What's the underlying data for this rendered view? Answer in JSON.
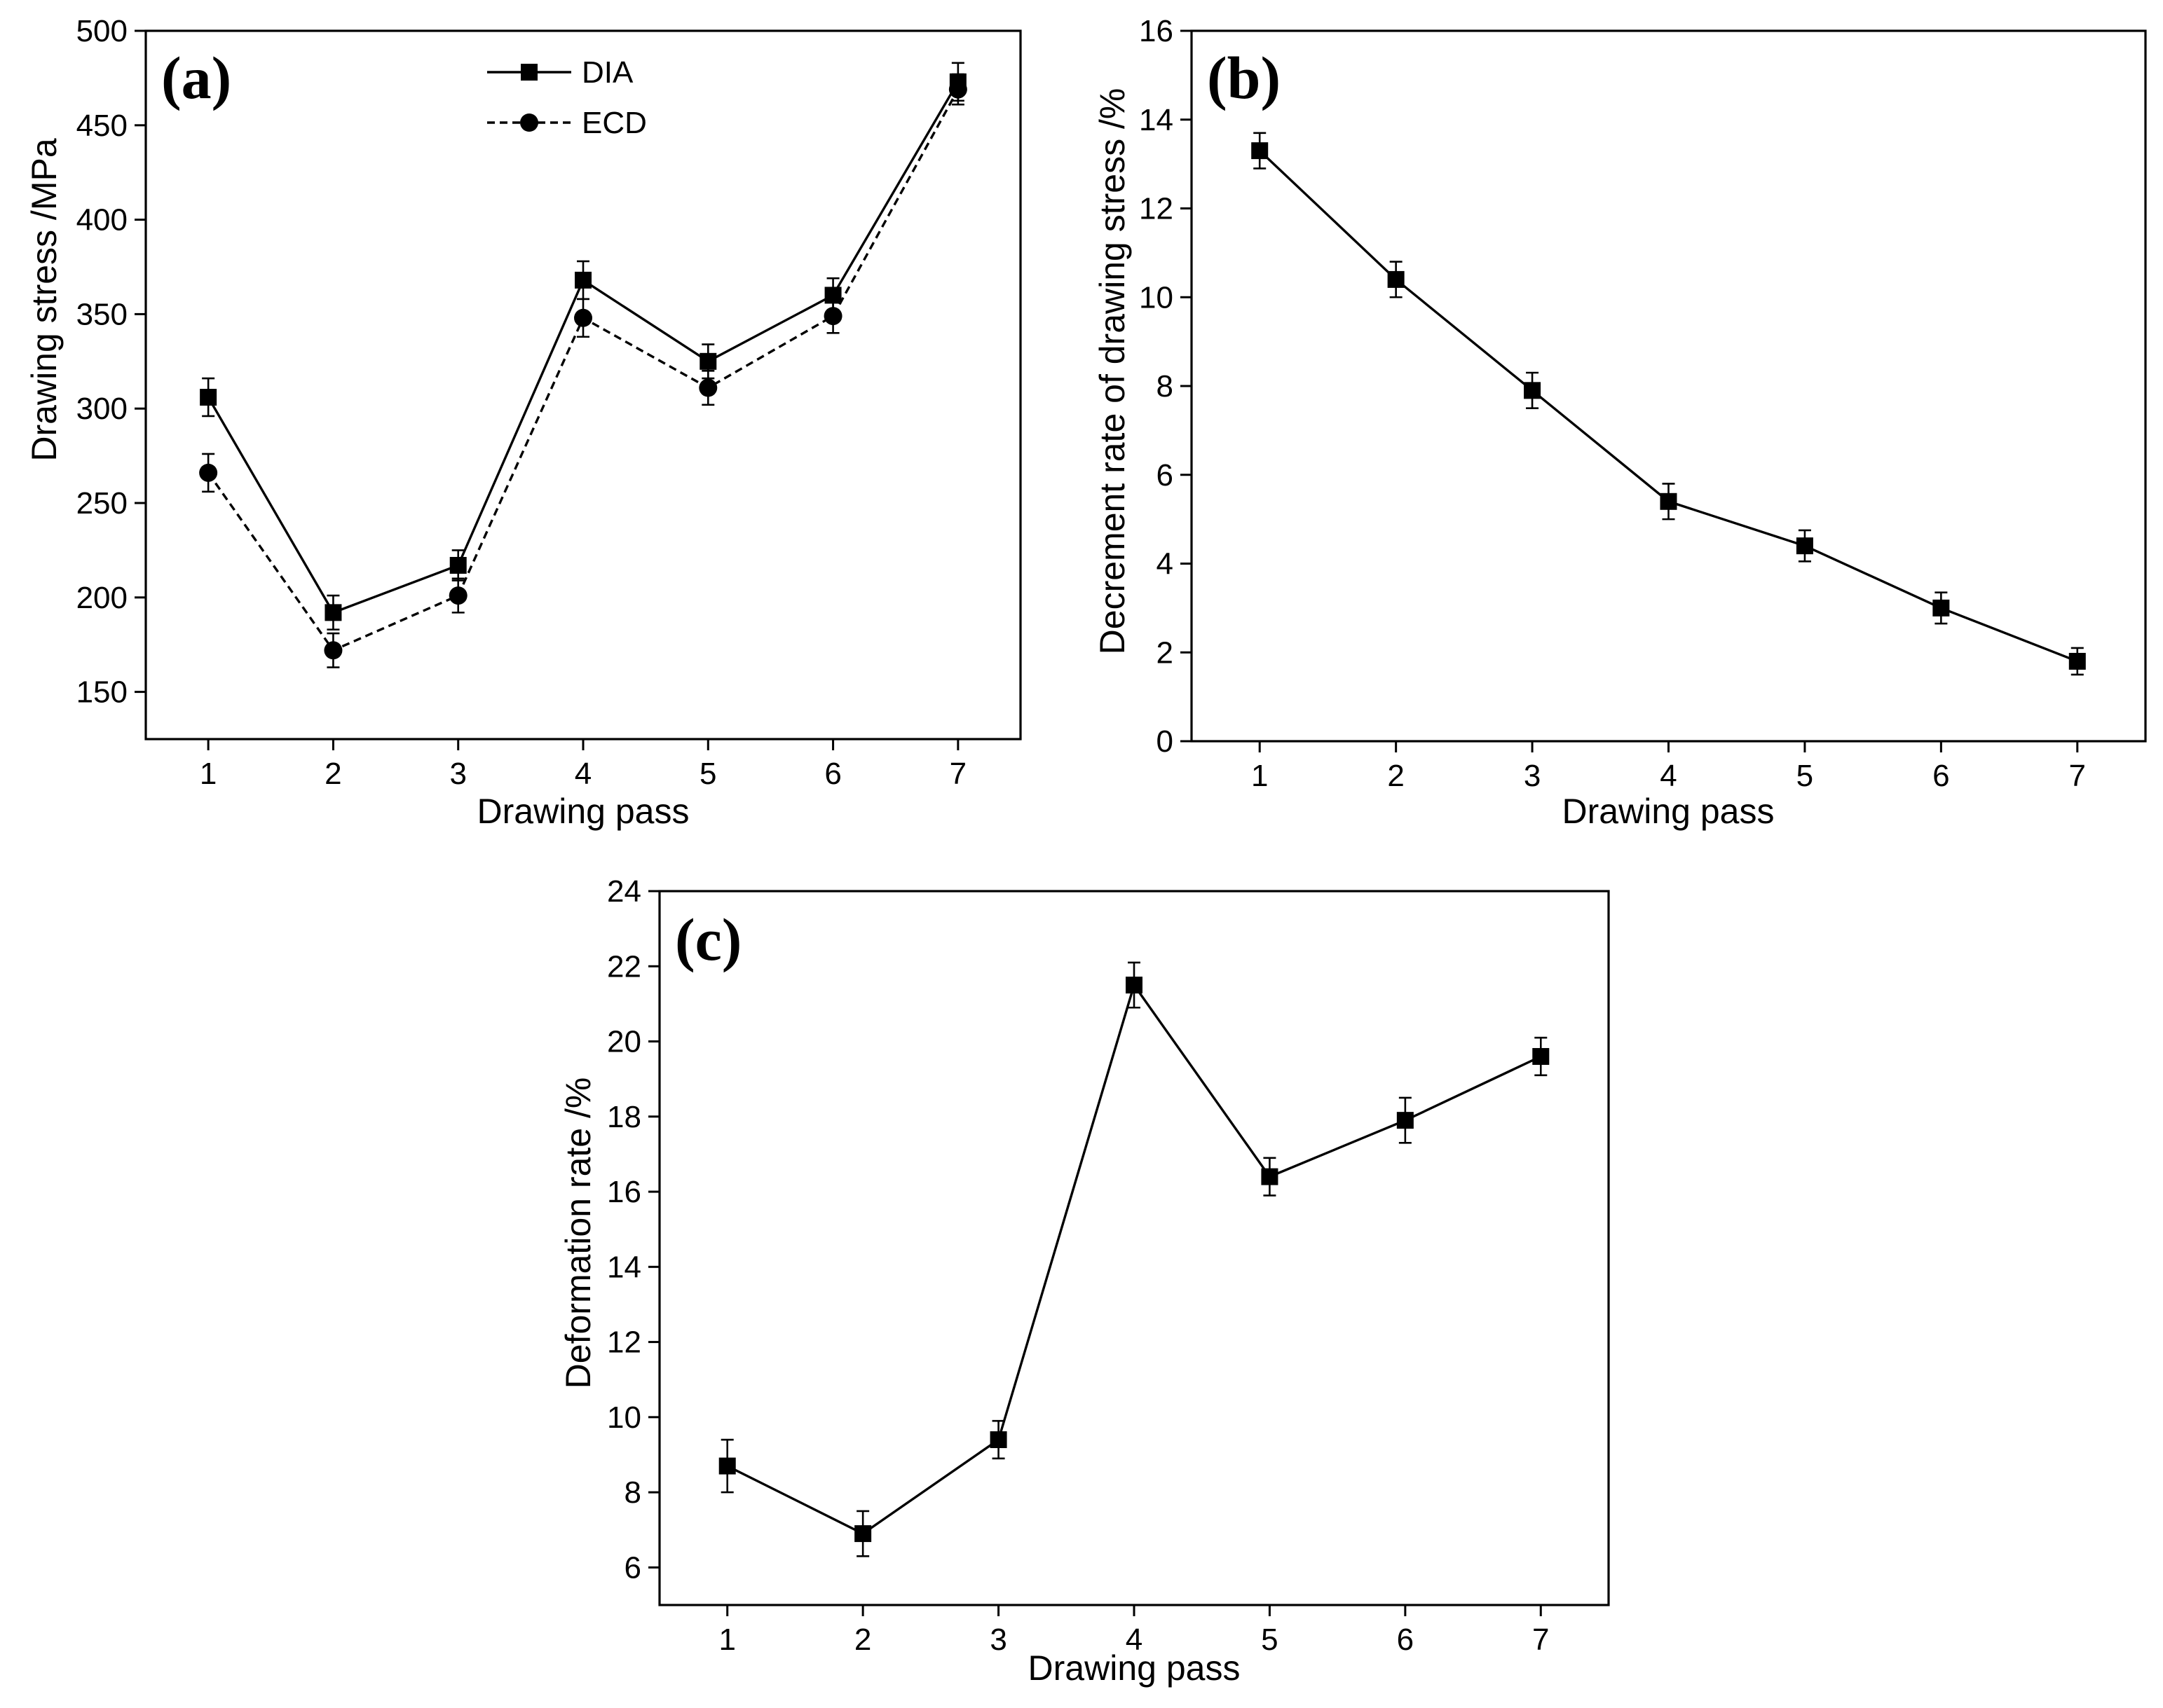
{
  "chart_data": [
    {
      "panel": "(a)",
      "type": "line",
      "xlabel": "Drawing pass",
      "ylabel": "Drawing stress /MPa",
      "x": [
        1,
        2,
        3,
        4,
        5,
        6,
        7
      ],
      "xlim": [
        0.5,
        7.5
      ],
      "ylim": [
        125,
        500
      ],
      "xticks": [
        1,
        2,
        3,
        4,
        5,
        6,
        7
      ],
      "yticks": [
        150,
        200,
        250,
        300,
        350,
        400,
        450,
        500
      ],
      "grid": false,
      "legend_position": "top-center",
      "series": [
        {
          "name": "DIA",
          "marker": "square",
          "line": "solid",
          "values": [
            306,
            192,
            217,
            368,
            325,
            360,
            473
          ],
          "error": [
            10,
            9,
            8,
            10,
            9,
            9,
            10
          ]
        },
        {
          "name": "ECD",
          "marker": "circle",
          "line": "dashed",
          "values": [
            266,
            172,
            201,
            348,
            311,
            349,
            469
          ],
          "error": [
            10,
            9,
            9,
            10,
            9,
            9,
            8
          ]
        }
      ]
    },
    {
      "panel": "(b)",
      "type": "line",
      "xlabel": "Drawing pass",
      "ylabel": "Decrement rate of drawing stress /%",
      "x": [
        1,
        2,
        3,
        4,
        5,
        6,
        7
      ],
      "xlim": [
        0.5,
        7.5
      ],
      "ylim": [
        0,
        16
      ],
      "xticks": [
        1,
        2,
        3,
        4,
        5,
        6,
        7
      ],
      "yticks": [
        0,
        2,
        4,
        6,
        8,
        10,
        12,
        14,
        16
      ],
      "grid": false,
      "series": [
        {
          "name": "Decrement rate",
          "marker": "square",
          "line": "solid",
          "values": [
            13.3,
            10.4,
            7.9,
            5.4,
            4.4,
            3.0,
            1.8
          ],
          "error": [
            0.4,
            0.4,
            0.4,
            0.4,
            0.35,
            0.35,
            0.3
          ]
        }
      ]
    },
    {
      "panel": "(c)",
      "type": "line",
      "xlabel": "Drawing pass",
      "ylabel": "Deformation rate /%",
      "x": [
        1,
        2,
        3,
        4,
        5,
        6,
        7
      ],
      "xlim": [
        0.5,
        7.5
      ],
      "ylim": [
        5,
        24
      ],
      "xticks": [
        1,
        2,
        3,
        4,
        5,
        6,
        7
      ],
      "yticks": [
        6,
        8,
        10,
        12,
        14,
        16,
        18,
        20,
        22,
        24
      ],
      "grid": false,
      "series": [
        {
          "name": "Deformation rate",
          "marker": "square",
          "line": "solid",
          "values": [
            8.7,
            6.9,
            9.4,
            21.5,
            16.4,
            17.9,
            19.6
          ],
          "error": [
            0.7,
            0.6,
            0.5,
            0.6,
            0.5,
            0.6,
            0.5
          ]
        }
      ]
    }
  ]
}
